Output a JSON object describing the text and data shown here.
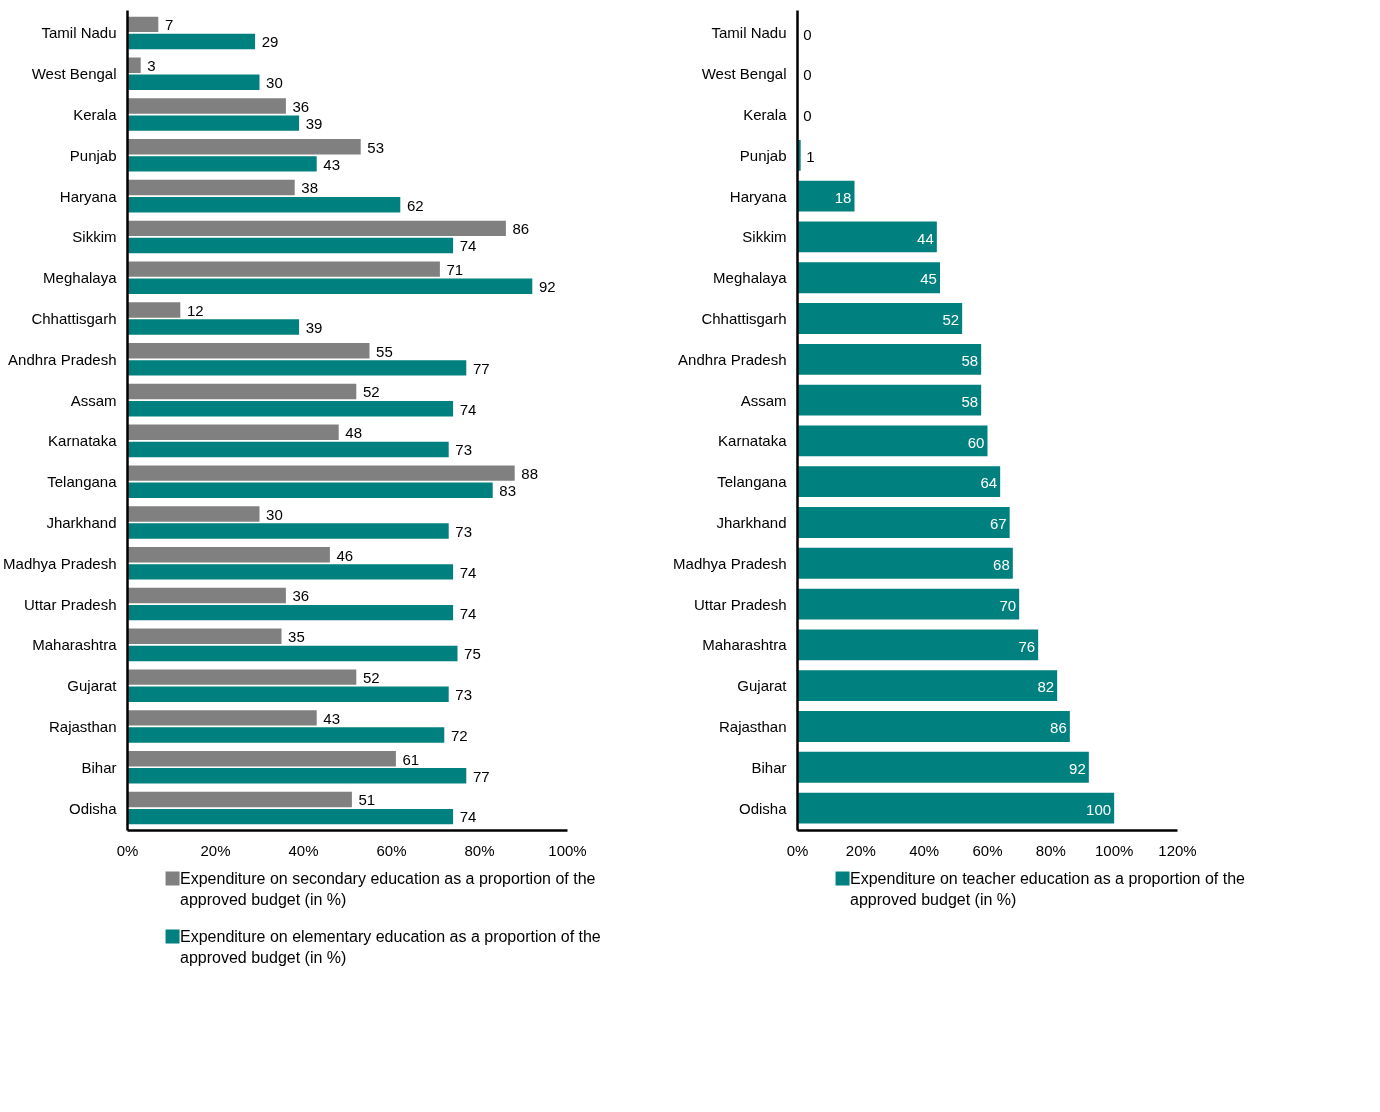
{
  "chart_data": [
    {
      "type": "bar",
      "orientation": "horizontal",
      "categories": [
        "Tamil Nadu",
        "West Bengal",
        "Kerala",
        "Punjab",
        "Haryana",
        "Sikkim",
        "Meghalaya",
        "Chhattisgarh",
        "Andhra Pradesh",
        "Assam",
        "Karnataka",
        "Telangana",
        "Jharkhand",
        "Madhya Pradesh",
        "Uttar Pradesh",
        "Maharashtra",
        "Gujarat",
        "Rajasthan",
        "Bihar",
        "Odisha"
      ],
      "series": [
        {
          "name": "Expenditure on secondary education as a proportion of the approved budget (in %)",
          "color": "#808080",
          "values": [
            7,
            3,
            36,
            53,
            38,
            86,
            71,
            12,
            55,
            52,
            48,
            88,
            30,
            46,
            36,
            35,
            52,
            43,
            61,
            51
          ]
        },
        {
          "name": "Expenditure on elementary education as a proportion of the approved budget (in %)",
          "color": "#00807f",
          "values": [
            29,
            30,
            39,
            43,
            62,
            74,
            92,
            39,
            77,
            74,
            73,
            83,
            73,
            74,
            74,
            75,
            73,
            72,
            77,
            74
          ]
        }
      ],
      "xlim": [
        0,
        100
      ],
      "xticks": [
        {
          "value": 0,
          "label": "0%"
        },
        {
          "value": 20,
          "label": "20%"
        },
        {
          "value": 40,
          "label": "40%"
        },
        {
          "value": 60,
          "label": "60%"
        },
        {
          "value": 80,
          "label": "80%"
        },
        {
          "value": 100,
          "label": "100%"
        }
      ],
      "data_labels": true,
      "legend": "bottom"
    },
    {
      "type": "bar",
      "orientation": "horizontal",
      "categories": [
        "Tamil Nadu",
        "West Bengal",
        "Kerala",
        "Punjab",
        "Haryana",
        "Sikkim",
        "Meghalaya",
        "Chhattisgarh",
        "Andhra Pradesh",
        "Assam",
        "Karnataka",
        "Telangana",
        "Jharkhand",
        "Madhya Pradesh",
        "Uttar Pradesh",
        "Maharashtra",
        "Gujarat",
        "Rajasthan",
        "Bihar",
        "Odisha"
      ],
      "series": [
        {
          "name": "Expenditure on teacher education as a proportion of the approved budget (in %)",
          "color": "#00807f",
          "values": [
            0,
            0,
            0,
            1,
            18,
            44,
            45,
            52,
            58,
            58,
            60,
            64,
            67,
            68,
            70,
            76,
            82,
            86,
            92,
            100
          ]
        }
      ],
      "xlim": [
        0,
        120
      ],
      "xticks": [
        {
          "value": 0,
          "label": "0%"
        },
        {
          "value": 20,
          "label": "20%"
        },
        {
          "value": 40,
          "label": "40%"
        },
        {
          "value": 60,
          "label": "60%"
        },
        {
          "value": 80,
          "label": "80%"
        },
        {
          "value": 100,
          "label": "100%"
        },
        {
          "value": 120,
          "label": "120%"
        }
      ],
      "data_labels": true,
      "legend": "bottom"
    }
  ]
}
